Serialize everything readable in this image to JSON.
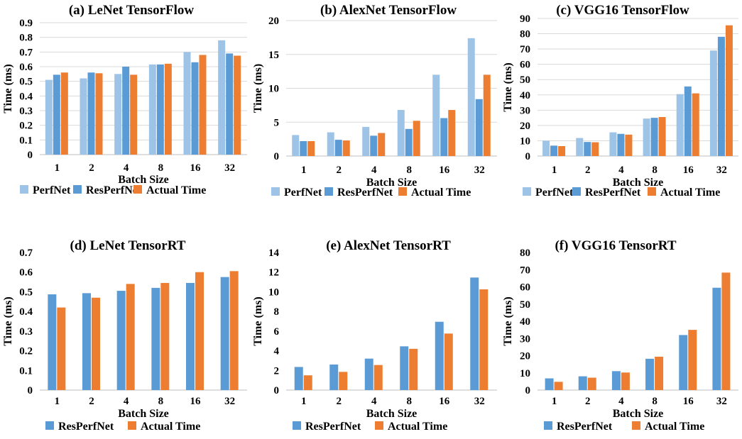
{
  "colors": {
    "PerfNet": "#9dc3e6",
    "ResPerfNet": "#5b9bd5",
    "Actual Time": "#ed7d31",
    "grid": "#d9d9d9",
    "axis": "#bfbfbf"
  },
  "chart_data": [
    {
      "type": "bar",
      "title": "(a) LeNet TensorFlow",
      "xlabel": "Batch Size",
      "ylabel": "Time (ms)",
      "categories": [
        "1",
        "2",
        "4",
        "8",
        "16",
        "32"
      ],
      "ylim": [
        0,
        0.9
      ],
      "ytick_step": 0.1,
      "ytick_labels": [
        "0",
        "0.1",
        "0.2",
        "0.3",
        "0.4",
        "0.5",
        "0.6",
        "0.7",
        "0.8",
        "0.9"
      ],
      "grid": true,
      "legend_position": "bottom",
      "series": [
        {
          "name": "PerfNet",
          "values": [
            0.51,
            0.52,
            0.55,
            0.615,
            0.7,
            0.78
          ]
        },
        {
          "name": "ResPerfNet",
          "values": [
            0.545,
            0.56,
            0.6,
            0.615,
            0.63,
            0.69
          ]
        },
        {
          "name": "Actual Time",
          "values": [
            0.56,
            0.555,
            0.545,
            0.62,
            0.68,
            0.675
          ]
        }
      ]
    },
    {
      "type": "bar",
      "title": "(b) AlexNet TensorFlow",
      "xlabel": "Batch Size",
      "ylabel": "Time (ms)",
      "categories": [
        "1",
        "2",
        "4",
        "8",
        "16",
        "32"
      ],
      "ylim": [
        0,
        20
      ],
      "ytick_step": 5,
      "ytick_labels": [
        "0",
        "5",
        "10",
        "15",
        "20"
      ],
      "grid": true,
      "legend_position": "bottom",
      "series": [
        {
          "name": "PerfNet",
          "values": [
            3.1,
            3.5,
            4.3,
            6.8,
            12.0,
            17.4
          ]
        },
        {
          "name": "ResPerfNet",
          "values": [
            2.2,
            2.4,
            3.0,
            4.0,
            5.6,
            8.4
          ]
        },
        {
          "name": "Actual Time",
          "values": [
            2.2,
            2.3,
            3.4,
            5.2,
            6.8,
            12.0
          ]
        }
      ]
    },
    {
      "type": "bar",
      "title": "(c) VGG16 TensorFlow",
      "xlabel": "Batch Size",
      "ylabel": "Time (ms)",
      "categories": [
        "1",
        "2",
        "4",
        "8",
        "16",
        "32"
      ],
      "ylim": [
        0,
        90
      ],
      "ytick_step": 10,
      "ytick_labels": [
        "0",
        "10",
        "20",
        "30",
        "40",
        "50",
        "60",
        "70",
        "80",
        "90"
      ],
      "grid": true,
      "legend_position": "bottom",
      "series": [
        {
          "name": "PerfNet",
          "values": [
            10.0,
            11.8,
            15.5,
            24.5,
            40.5,
            69.0
          ]
        },
        {
          "name": "ResPerfNet",
          "values": [
            6.8,
            9.2,
            14.5,
            25.0,
            45.5,
            78.0
          ]
        },
        {
          "name": "Actual Time",
          "values": [
            6.5,
            9.0,
            14.0,
            25.5,
            41.0,
            85.5
          ]
        }
      ]
    },
    {
      "type": "bar",
      "title": "(d) LeNet TensorRT",
      "xlabel": "Batch Size",
      "ylabel": "Time (ms)",
      "categories": [
        "1",
        "2",
        "4",
        "8",
        "16",
        "32"
      ],
      "ylim": [
        0,
        0.7
      ],
      "ytick_step": 0.1,
      "ytick_labels": [
        "0",
        "0.1",
        "0.2",
        "0.3",
        "0.4",
        "0.5",
        "0.6",
        "0.7"
      ],
      "grid": false,
      "legend_position": "bottom",
      "series": [
        {
          "name": "ResPerfNet",
          "values": [
            0.487,
            0.493,
            0.505,
            0.52,
            0.545,
            0.575
          ]
        },
        {
          "name": "Actual Time",
          "values": [
            0.42,
            0.47,
            0.54,
            0.545,
            0.6,
            0.605
          ]
        }
      ]
    },
    {
      "type": "bar",
      "title": "(e) AlexNet TensorRT",
      "xlabel": "Batch Size",
      "ylabel": "Time (ms)",
      "categories": [
        "1",
        "2",
        "4",
        "8",
        "16",
        "32"
      ],
      "ylim": [
        0,
        14
      ],
      "ytick_step": 2,
      "ytick_labels": [
        "0",
        "2",
        "4",
        "6",
        "8",
        "10",
        "12",
        "14"
      ],
      "grid": false,
      "legend_position": "bottom",
      "series": [
        {
          "name": "ResPerfNet",
          "values": [
            2.35,
            2.6,
            3.2,
            4.45,
            6.95,
            11.45
          ]
        },
        {
          "name": "Actual Time",
          "values": [
            1.5,
            1.85,
            2.55,
            4.2,
            5.75,
            10.25
          ]
        }
      ]
    },
    {
      "type": "bar",
      "title": "(f) VGG16 TensorRT",
      "xlabel": "Batch Size",
      "ylabel": "Time (ms)",
      "categories": [
        "1",
        "2",
        "4",
        "8",
        "16",
        "32"
      ],
      "ylim": [
        0,
        80
      ],
      "ytick_step": 10,
      "ytick_labels": [
        "0",
        "10",
        "20",
        "30",
        "40",
        "50",
        "60",
        "70",
        "80"
      ],
      "grid": false,
      "legend_position": "bottom",
      "series": [
        {
          "name": "ResPerfNet",
          "values": [
            6.8,
            8.0,
            11.0,
            18.2,
            32.0,
            59.5
          ]
        },
        {
          "name": "Actual Time",
          "values": [
            4.8,
            7.2,
            10.2,
            19.4,
            35.0,
            68.3
          ]
        }
      ]
    }
  ]
}
